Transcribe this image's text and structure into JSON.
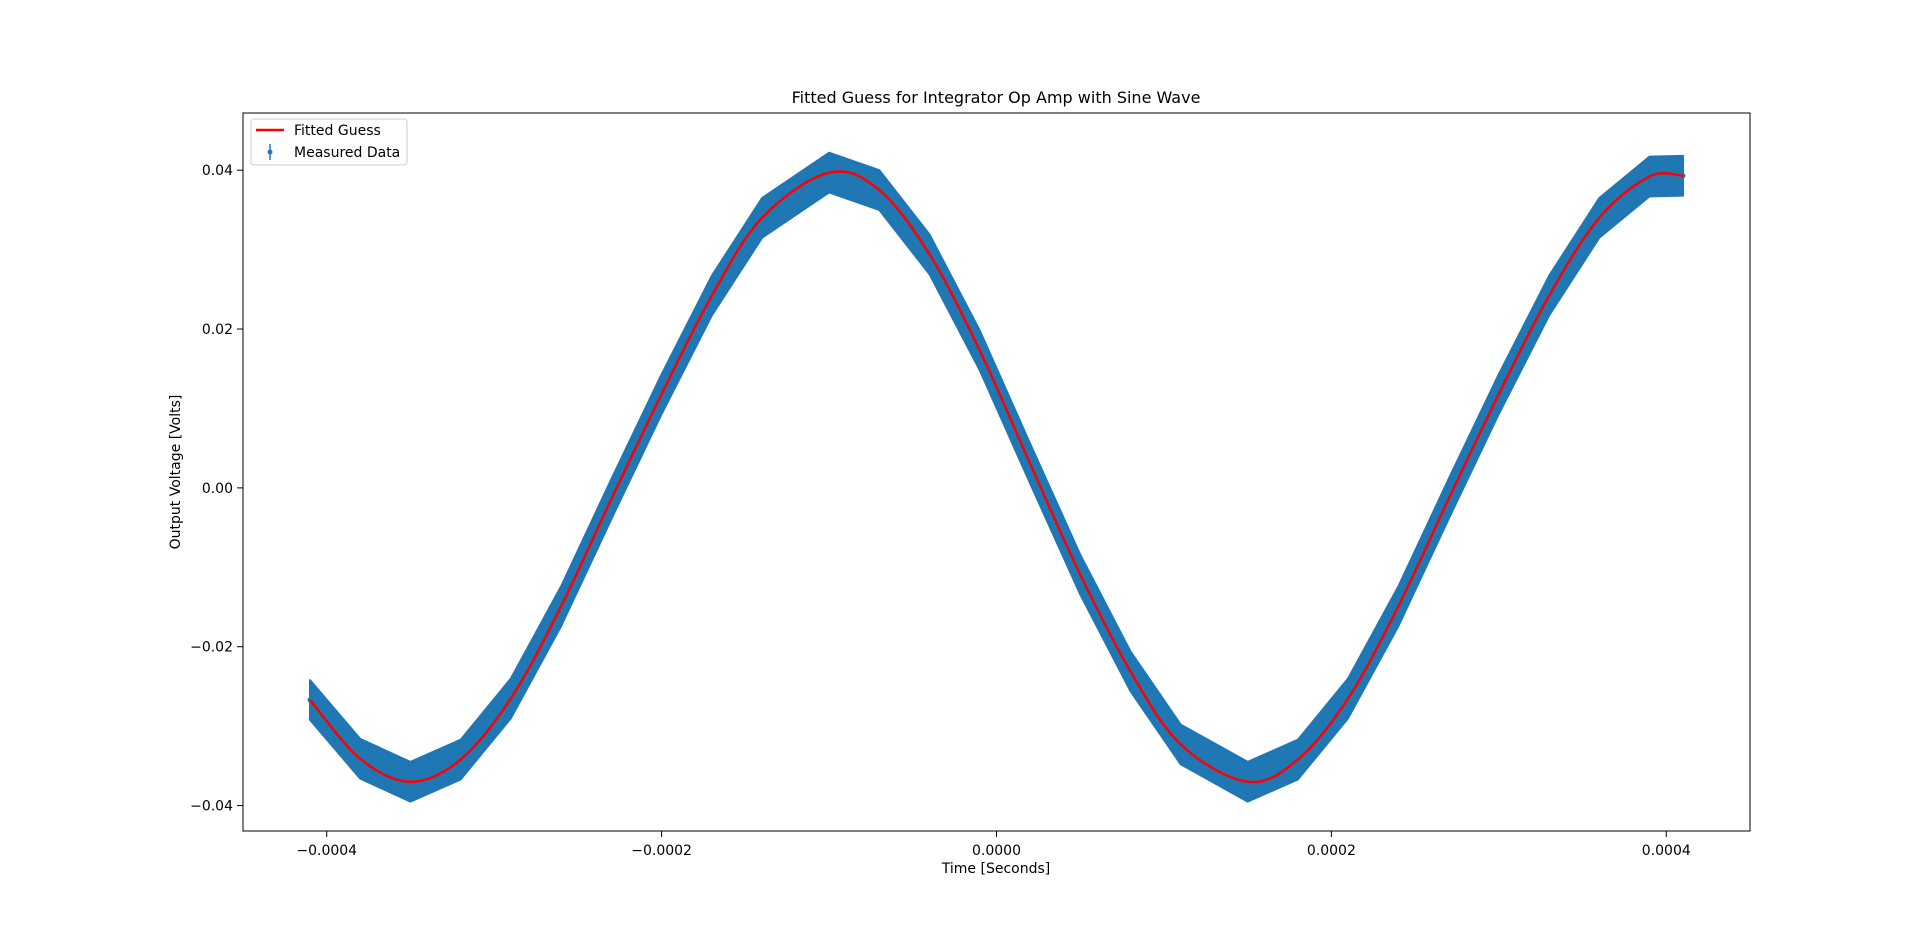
{
  "chart_data": {
    "type": "line",
    "title": "Fitted Guess for Integrator Op Amp with Sine Wave",
    "xlabel": "Time [Seconds]",
    "ylabel": "Output Voltage [Volts]",
    "xlim": [
      -0.00045,
      0.00045
    ],
    "ylim": [
      -0.0432,
      0.0472
    ],
    "x_ticks": [
      -0.0004,
      -0.0002,
      0.0,
      0.0002,
      0.0004
    ],
    "x_tick_labels": [
      "−0.0004",
      "−0.0002",
      "0.0000",
      "0.0002",
      "0.0004"
    ],
    "y_ticks": [
      -0.04,
      -0.02,
      0.0,
      0.02,
      0.04
    ],
    "y_tick_labels": [
      "−0.04",
      "−0.02",
      "0.00",
      "0.02",
      "0.04"
    ],
    "grid": false,
    "legend": {
      "placement": "upper-left",
      "entries": [
        "Fitted Guess",
        "Measured Data"
      ]
    },
    "series": [
      {
        "name": "Fitted Guess",
        "kind": "line",
        "color": "#ff0000",
        "x": [
          -0.00041,
          -0.00038,
          -0.00035,
          -0.00032,
          -0.00029,
          -0.00026,
          -0.00023,
          -0.0002,
          -0.00017,
          -0.00014,
          -0.0001,
          -7e-05,
          -4e-05,
          -1e-05,
          2e-05,
          5e-05,
          8e-05,
          0.00011,
          0.00015,
          0.00018,
          0.00021,
          0.00024,
          0.00027,
          0.0003,
          0.00033,
          0.00036,
          0.00039,
          0.00041
        ],
        "y": [
          -0.0267,
          -0.0341,
          -0.037,
          -0.0342,
          -0.0265,
          -0.0149,
          -0.0014,
          0.0118,
          0.0242,
          0.034,
          0.0397,
          0.0375,
          0.0294,
          0.0173,
          0.0031,
          -0.0109,
          -0.0231,
          -0.0323,
          -0.037,
          -0.0342,
          -0.0265,
          -0.0149,
          -0.0014,
          0.0118,
          0.0242,
          0.034,
          0.0392,
          0.0393
        ]
      },
      {
        "name": "Measured Data",
        "kind": "errorbar",
        "color": "#1f77b4",
        "yerr": 0.0025,
        "x": [
          -0.00041,
          -0.00038,
          -0.00035,
          -0.00032,
          -0.00029,
          -0.00026,
          -0.00023,
          -0.0002,
          -0.00017,
          -0.00014,
          -0.0001,
          -7e-05,
          -4e-05,
          -1e-05,
          2e-05,
          5e-05,
          8e-05,
          0.00011,
          0.00015,
          0.00018,
          0.00021,
          0.00024,
          0.00027,
          0.0003,
          0.00033,
          0.00036,
          0.00039,
          0.00041
        ],
        "y": [
          -0.0267,
          -0.0341,
          -0.037,
          -0.0342,
          -0.0265,
          -0.0149,
          -0.0014,
          0.0118,
          0.0242,
          0.034,
          0.0397,
          0.0375,
          0.0294,
          0.0173,
          0.0031,
          -0.0109,
          -0.0231,
          -0.0323,
          -0.037,
          -0.0342,
          -0.0265,
          -0.0149,
          -0.0014,
          0.0118,
          0.0242,
          0.034,
          0.0392,
          0.0393
        ]
      }
    ]
  }
}
